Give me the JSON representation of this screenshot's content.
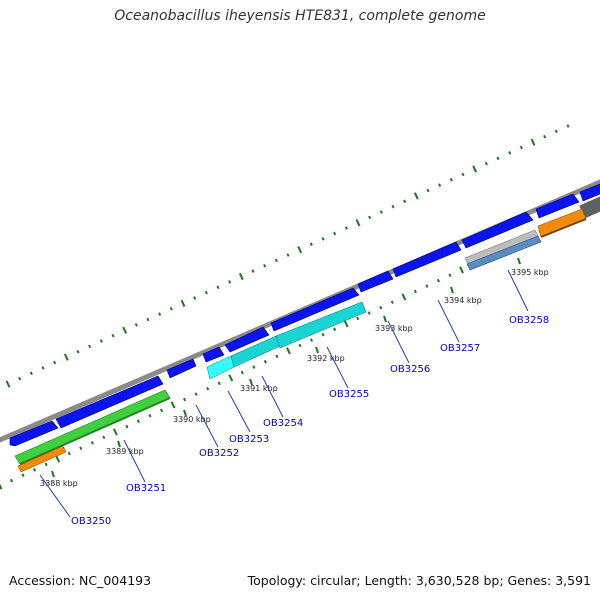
{
  "title": "Oceanobacillus iheyensis HTE831, complete genome",
  "accession_text": "Accession: NC_004193",
  "info_text": "Topology: circular; Length: 3,630,528 bp; Genes: 3,591",
  "kbp_labels": [
    "3388 kbp",
    "3389 kbp",
    "3390 kbp",
    "3391 kbp",
    "3392 kbp",
    "3393 kbp",
    "3394 kbp",
    "3395 kbp"
  ],
  "gene_labels": [
    "OB3250",
    "OB3251",
    "OB3252",
    "OB3253",
    "OB3254",
    "OB3255",
    "OB3256",
    "OB3257",
    "OB3258"
  ],
  "colors": {
    "cds": "#0a14f0",
    "backbone": "#8a8a8a",
    "green": "#3fcf3f",
    "orange": "#f28a10",
    "cyan": "#1ad4d4",
    "steel": "#5b8cc0",
    "grey_feature": "#bdbdbd",
    "tick": "#1a7a1a",
    "label_line": "#1e3cc8"
  }
}
